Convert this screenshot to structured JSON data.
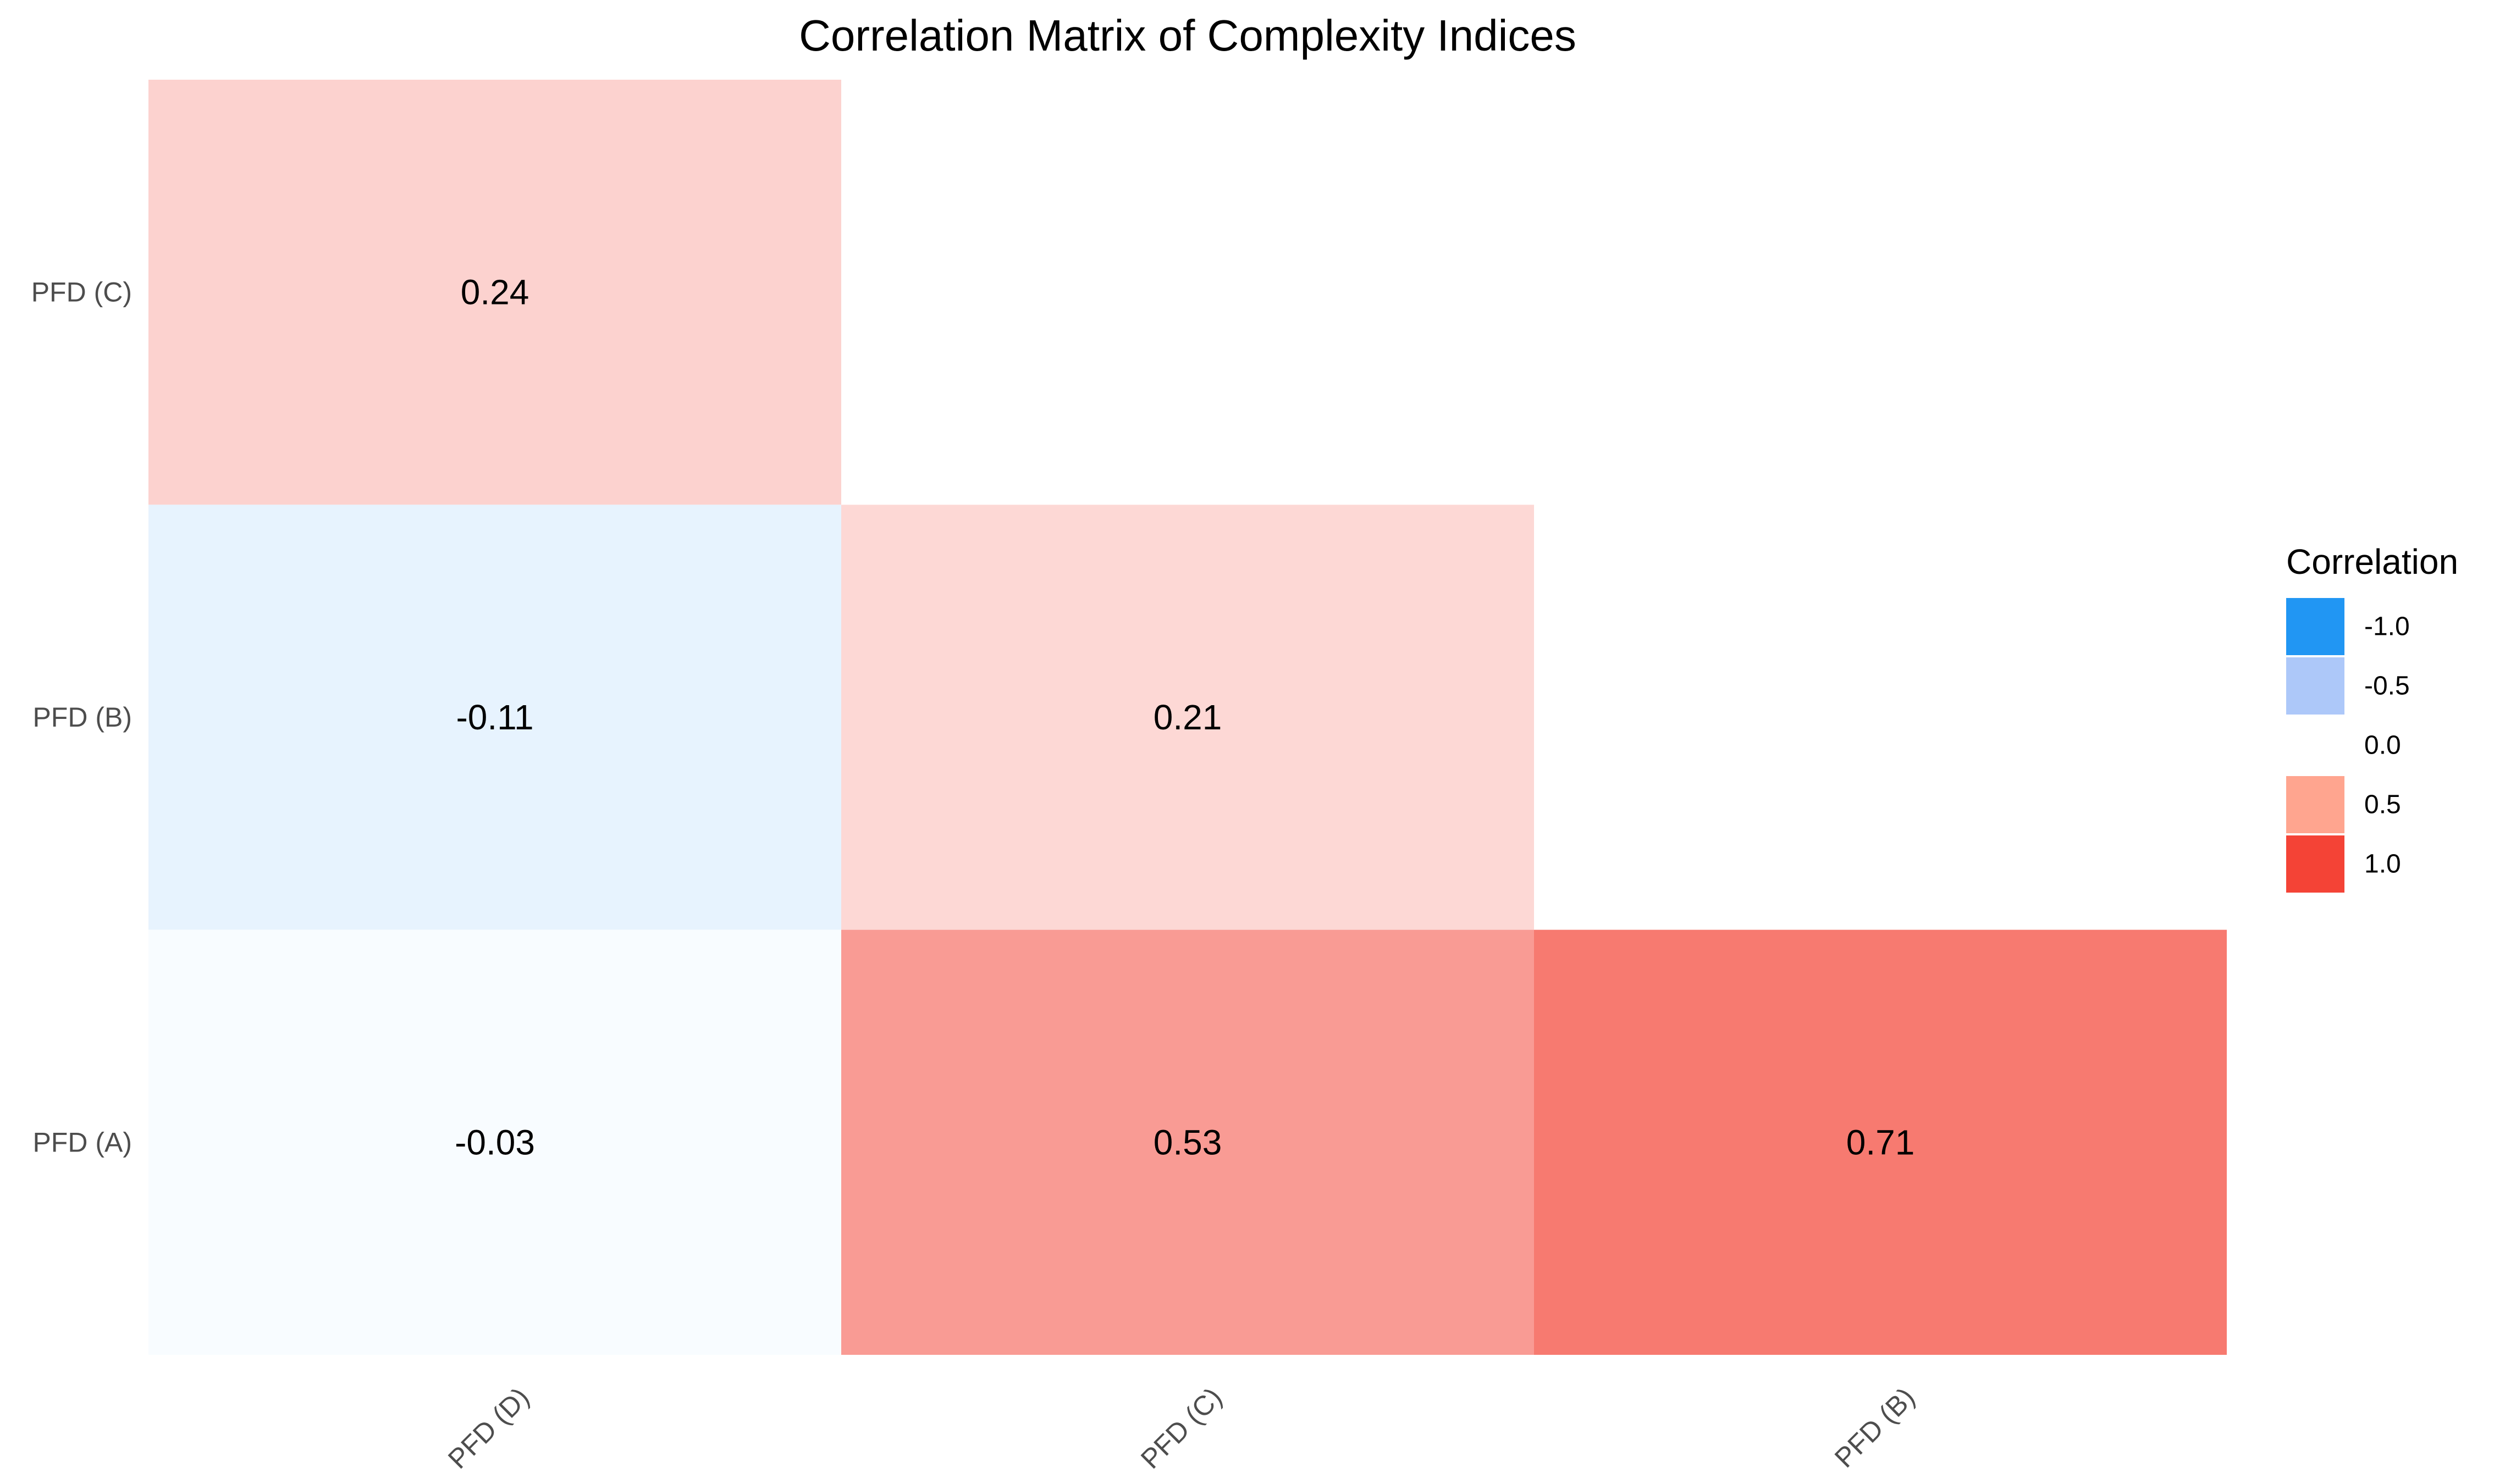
{
  "chart_data": {
    "type": "heatmap",
    "title": "Correlation Matrix of Complexity Indices",
    "x_categories": [
      "PFD (D)",
      "PFD (C)",
      "PFD (B)"
    ],
    "y_categories": [
      "PFD (C)",
      "PFD (B)",
      "PFD (A)"
    ],
    "cells": [
      {
        "x": "PFD (D)",
        "y": "PFD (C)",
        "value": 0.24,
        "label": "0.24"
      },
      {
        "x": "PFD (D)",
        "y": "PFD (B)",
        "value": -0.11,
        "label": "-0.11"
      },
      {
        "x": "PFD (C)",
        "y": "PFD (B)",
        "value": 0.21,
        "label": "0.21"
      },
      {
        "x": "PFD (D)",
        "y": "PFD (A)",
        "value": -0.03,
        "label": "-0.03"
      },
      {
        "x": "PFD (C)",
        "y": "PFD (A)",
        "value": 0.53,
        "label": "0.53"
      },
      {
        "x": "PFD (B)",
        "y": "PFD (A)",
        "value": 0.71,
        "label": "0.71"
      }
    ],
    "color_scale": {
      "low": "#2196F3",
      "mid": "#FFFFFF",
      "high": "#F44336",
      "limits": [
        -1,
        1
      ]
    },
    "legend": {
      "title": "Correlation",
      "position": "right",
      "entries": [
        {
          "label": "-1.0",
          "value": -1.0,
          "color": "#2196F3"
        },
        {
          "label": "-0.5",
          "value": -0.5,
          "color": "#ADC8F9"
        },
        {
          "label": "0.0",
          "value": 0.0,
          "color": "#FFFFFF"
        },
        {
          "label": "0.5",
          "value": 0.5,
          "color": "#FFA58F"
        },
        {
          "label": "1.0",
          "value": 1.0,
          "color": "#F44336"
        }
      ]
    },
    "grid": false
  }
}
